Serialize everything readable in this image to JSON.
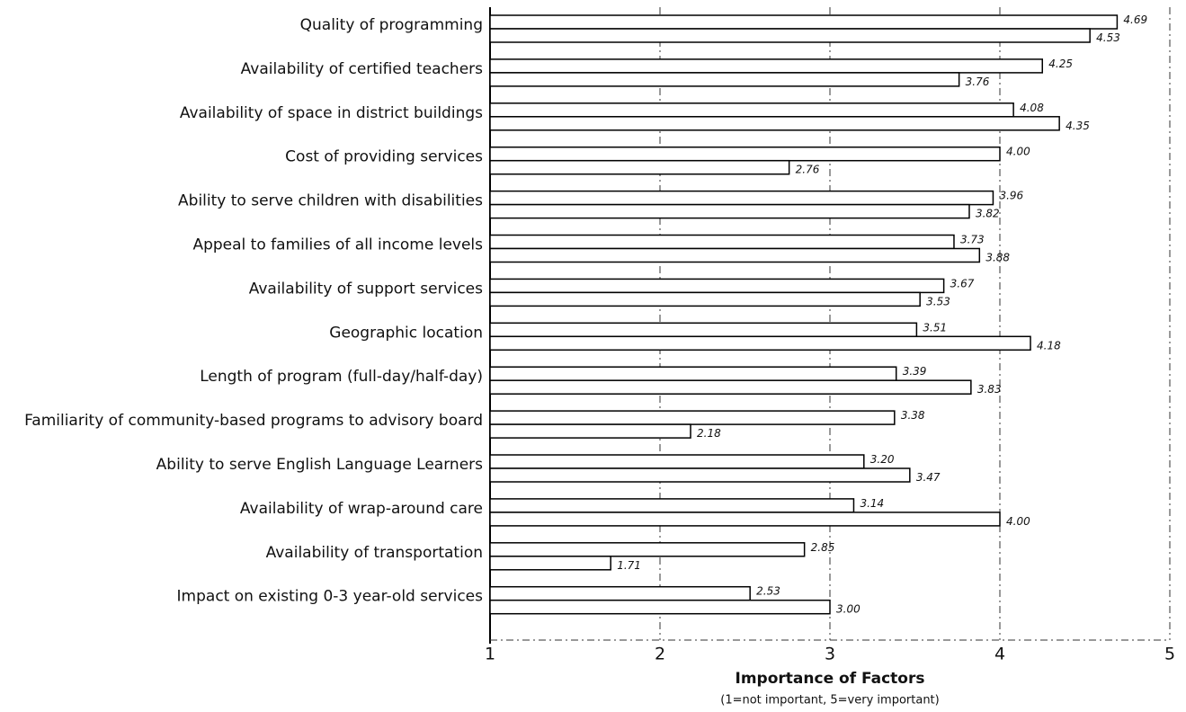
{
  "chart_data": {
    "type": "bar",
    "orientation": "horizontal",
    "xlabel": "Importance of Factors",
    "xlabel_note": "(1=not important, 5=very important)",
    "categories": [
      "Quality of programming",
      "Availability of certified teachers",
      "Availability of space in district buildings",
      "Cost of providing services",
      "Ability to serve children with disabilities",
      "Appeal to families of all income levels",
      "Availability of support services",
      "Geographic location",
      "Length of program (full-day/half-day)",
      "Familiarity of community-based programs to advisory board",
      "Ability to serve English Language Learners",
      "Availability of wrap-around care",
      "Availability of transportation",
      "Impact on existing 0-3 year-old services"
    ],
    "series": [
      {
        "color": "#ffffff",
        "values": [
          4.69,
          4.25,
          4.08,
          4,
          3.96,
          3.73,
          3.67,
          3.51,
          3.39,
          3.38,
          3.2,
          3.14,
          2.85,
          2.53
        ],
        "value_labels": [
          "4.69",
          "4.25",
          "4.08",
          "4.00",
          "3.96",
          "3.73",
          "3.67",
          "3.51",
          "3.39",
          "3.38",
          "3.20",
          "3.14",
          "2.85",
          "2.53"
        ]
      },
      {
        "color": "#ffffff",
        "values": [
          4.53,
          3.76,
          4.35,
          2.76,
          3.82,
          3.88,
          3.53,
          4.18,
          3.83,
          2.18,
          3.47,
          4,
          1.71,
          3
        ],
        "value_labels": [
          "4.53",
          "3.76",
          "4.35",
          "2.76",
          "3.82",
          "3.88",
          "3.53",
          "4.18",
          "3.83",
          "2.18",
          "3.47",
          "4.00",
          "1.71",
          "3.00"
        ]
      }
    ],
    "xlim": [
      1,
      5
    ],
    "xticks": [
      1,
      2,
      3,
      4,
      5
    ],
    "grid": true
  }
}
